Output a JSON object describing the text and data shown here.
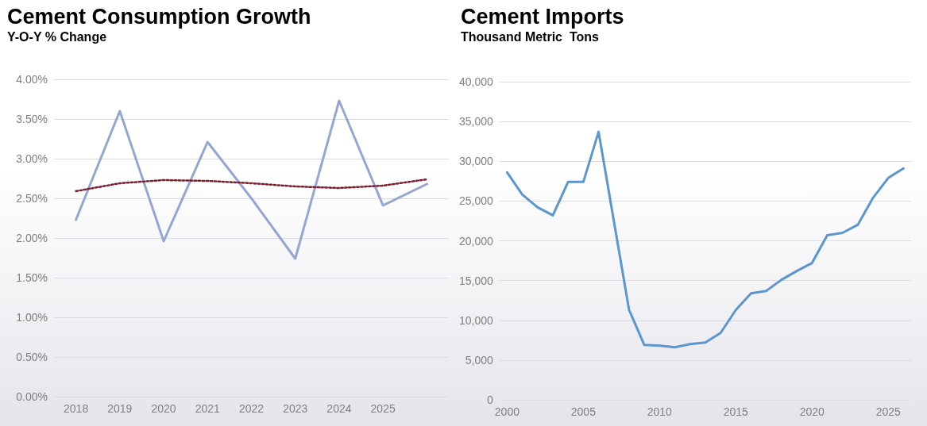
{
  "chart_data": [
    {
      "type": "line",
      "title": "Cement Consumption Growth",
      "subtitle": "Y-O-Y % Change",
      "categories": [
        "2018",
        "2019",
        "2020",
        "2021",
        "2022",
        "2023",
        "2024",
        "2025",
        null
      ],
      "series": [
        {
          "color": "#95a6d4",
          "values": [
            2.23,
            3.6,
            1.96,
            3.21,
            2.5,
            1.74,
            3.73,
            2.41,
            2.68
          ]
        },
        {
          "color": "#7b2030",
          "line_style": "dotted",
          "values": [
            2.59,
            2.69,
            2.73,
            2.72,
            2.69,
            2.65,
            2.63,
            2.66,
            2.74
          ]
        }
      ],
      "ylim": [
        0,
        4
      ],
      "yticks": [
        {
          "value": 0,
          "label": "0.00%"
        },
        {
          "value": 0.5,
          "label": "0.50%"
        },
        {
          "value": 1,
          "label": "1.00%"
        },
        {
          "value": 1.5,
          "label": "1.50%"
        },
        {
          "value": 2,
          "label": "2.00%"
        },
        {
          "value": 2.5,
          "label": "2.50%"
        },
        {
          "value": 3,
          "label": "3.00%"
        },
        {
          "value": 3.5,
          "label": "3.50%"
        },
        {
          "value": 4,
          "label": "4.00%"
        }
      ],
      "grid": "y",
      "marker": "none",
      "line_style": "solid"
    },
    {
      "type": "line",
      "title": "Cement Imports",
      "subtitle": "Thousand Metric  Tons",
      "x": [
        2000,
        2001,
        2002,
        2003,
        2004,
        2005,
        2006,
        2007,
        2008,
        2009,
        2010,
        2011,
        2012,
        2013,
        2014,
        2015,
        2016,
        2017,
        2018,
        2019,
        2020,
        2021,
        2022,
        2023,
        2024,
        2025,
        2026
      ],
      "series": [
        {
          "color": "#5b96cf",
          "values": [
            28600,
            25800,
            24200,
            23200,
            27400,
            27400,
            33700,
            22500,
            11300,
            6900,
            6800,
            6600,
            7000,
            7200,
            8400,
            11300,
            13400,
            13700,
            15100,
            16200,
            17200,
            20700,
            21000,
            22000,
            25400,
            27900,
            29100
          ]
        }
      ],
      "xlim": [
        1999.5,
        2026.5
      ],
      "xticks": [
        2000,
        2005,
        2010,
        2015,
        2020,
        2025
      ],
      "ylim": [
        0,
        40000
      ],
      "yticks": [
        0,
        {
          "value": 5000,
          "label": "5,000"
        },
        {
          "value": 10000,
          "label": "10,000"
        },
        {
          "value": 15000,
          "label": "15,000"
        },
        {
          "value": 20000,
          "label": "20,000"
        },
        {
          "value": 25000,
          "label": "25,000"
        },
        {
          "value": 30000,
          "label": "30,000"
        },
        {
          "value": 35000,
          "label": "35,000"
        },
        {
          "value": 40000,
          "label": "40,000"
        }
      ],
      "grid": "y",
      "marker": "none",
      "line_style": "solid"
    }
  ]
}
